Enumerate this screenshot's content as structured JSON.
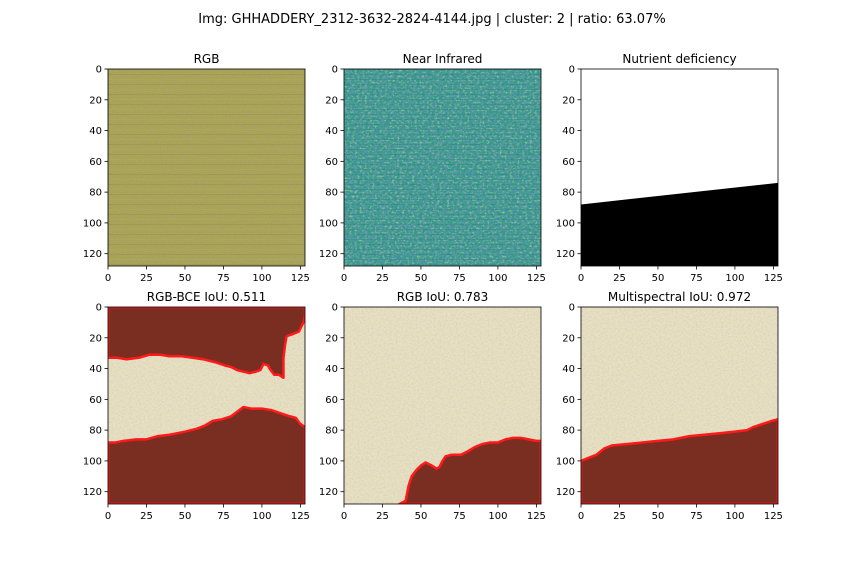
{
  "figure": {
    "title": "Img: GHHADDERY_2312-3632-2824-4144.jpg | cluster: 2 | ratio: 63.07%"
  },
  "chart_data": [
    {
      "type": "heatmap",
      "title": "RGB",
      "content": "rgb",
      "xticks": [
        0,
        25,
        50,
        75,
        100,
        125
      ],
      "yticks": [
        0,
        20,
        40,
        60,
        80,
        100,
        120
      ],
      "xlim": [
        0,
        128
      ],
      "ylim": [
        128,
        0
      ]
    },
    {
      "type": "heatmap",
      "title": "Near Infrared",
      "content": "nir",
      "colormap": "viridis",
      "xticks": [
        0,
        25,
        50,
        75,
        100,
        125
      ],
      "yticks": [
        0,
        20,
        40,
        60,
        80,
        100,
        120
      ],
      "xlim": [
        0,
        128
      ],
      "ylim": [
        128,
        0
      ]
    },
    {
      "type": "heatmap",
      "title": "Nutrient deficiency",
      "content": "mask",
      "boundary": [
        [
          0,
          88
        ],
        [
          128,
          74
        ]
      ],
      "above_color": "#ffffff",
      "below_color": "#000000",
      "xticks": [
        0,
        25,
        50,
        75,
        100,
        125
      ],
      "yticks": [
        0,
        20,
        40,
        60,
        80,
        100,
        120
      ],
      "xlim": [
        0,
        128
      ],
      "ylim": [
        128,
        0
      ]
    },
    {
      "type": "heatmap",
      "title": "RGB-BCE IoU: 0.511",
      "content": "prediction",
      "background": "#e8e0c2",
      "fill": "#7a2e22",
      "outline": "#ff1a1a",
      "regions": [
        [
          [
            0,
            0
          ],
          [
            128,
            0
          ],
          [
            128,
            5
          ],
          [
            127,
            10
          ],
          [
            124,
            16
          ],
          [
            119,
            18
          ],
          [
            116,
            19
          ],
          [
            115,
            25
          ],
          [
            114,
            33
          ],
          [
            114,
            46
          ],
          [
            111,
            44
          ],
          [
            108,
            44
          ],
          [
            105,
            40
          ],
          [
            104,
            38
          ],
          [
            101,
            37
          ],
          [
            100,
            39
          ],
          [
            99,
            41
          ],
          [
            96,
            42
          ],
          [
            92,
            43
          ],
          [
            88,
            42
          ],
          [
            84,
            41
          ],
          [
            80,
            39
          ],
          [
            76,
            38
          ],
          [
            73,
            37
          ],
          [
            70,
            36
          ],
          [
            66,
            35
          ],
          [
            62,
            34
          ],
          [
            55,
            33
          ],
          [
            48,
            32
          ],
          [
            40,
            32
          ],
          [
            34,
            31
          ],
          [
            27,
            31
          ],
          [
            20,
            33
          ],
          [
            12,
            34
          ],
          [
            6,
            33
          ],
          [
            0,
            33
          ]
        ],
        [
          [
            0,
            88
          ],
          [
            5,
            88
          ],
          [
            10,
            87
          ],
          [
            18,
            86
          ],
          [
            25,
            86
          ],
          [
            32,
            84
          ],
          [
            40,
            83
          ],
          [
            50,
            81
          ],
          [
            58,
            79
          ],
          [
            63,
            77
          ],
          [
            68,
            74
          ],
          [
            74,
            73
          ],
          [
            80,
            71
          ],
          [
            84,
            68
          ],
          [
            88,
            65
          ],
          [
            93,
            66
          ],
          [
            100,
            66
          ],
          [
            106,
            67
          ],
          [
            112,
            69
          ],
          [
            118,
            71
          ],
          [
            122,
            72
          ],
          [
            125,
            76
          ],
          [
            128,
            78
          ],
          [
            128,
            128
          ],
          [
            0,
            128
          ]
        ]
      ],
      "xticks": [
        0,
        25,
        50,
        75,
        100,
        125
      ],
      "yticks": [
        0,
        20,
        40,
        60,
        80,
        100,
        120
      ],
      "xlim": [
        0,
        128
      ],
      "ylim": [
        128,
        0
      ]
    },
    {
      "type": "heatmap",
      "title": "RGB IoU: 0.783",
      "content": "prediction",
      "background": "#e8e0c2",
      "fill": "#7a2e22",
      "outline": "#ff1a1a",
      "regions": [
        [
          [
            36,
            128
          ],
          [
            40,
            126
          ],
          [
            42,
            116
          ],
          [
            44,
            110
          ],
          [
            47,
            106
          ],
          [
            50,
            103
          ],
          [
            53,
            101
          ],
          [
            57,
            103
          ],
          [
            60,
            105
          ],
          [
            62,
            104
          ],
          [
            64,
            100
          ],
          [
            66,
            97
          ],
          [
            70,
            96
          ],
          [
            76,
            96
          ],
          [
            80,
            94
          ],
          [
            85,
            91
          ],
          [
            90,
            89
          ],
          [
            95,
            88
          ],
          [
            100,
            88
          ],
          [
            105,
            86
          ],
          [
            110,
            85
          ],
          [
            115,
            85
          ],
          [
            120,
            86
          ],
          [
            125,
            87
          ],
          [
            128,
            87
          ],
          [
            128,
            128
          ]
        ]
      ],
      "xticks": [
        0,
        25,
        50,
        75,
        100,
        125
      ],
      "yticks": [
        0,
        20,
        40,
        60,
        80,
        100,
        120
      ],
      "xlim": [
        0,
        128
      ],
      "ylim": [
        128,
        0
      ]
    },
    {
      "type": "heatmap",
      "title": "Multispectral IoU: 0.972",
      "content": "prediction",
      "background": "#e8e0c2",
      "fill": "#7a2e22",
      "outline": "#ff1a1a",
      "regions": [
        [
          [
            0,
            100
          ],
          [
            5,
            98
          ],
          [
            10,
            96
          ],
          [
            15,
            92
          ],
          [
            20,
            90
          ],
          [
            30,
            89
          ],
          [
            40,
            88
          ],
          [
            50,
            87
          ],
          [
            60,
            86
          ],
          [
            70,
            84
          ],
          [
            80,
            83
          ],
          [
            90,
            82
          ],
          [
            100,
            81
          ],
          [
            108,
            80
          ],
          [
            112,
            78
          ],
          [
            118,
            76
          ],
          [
            124,
            74
          ],
          [
            128,
            73
          ],
          [
            128,
            128
          ],
          [
            0,
            128
          ]
        ]
      ],
      "xticks": [
        0,
        25,
        50,
        75,
        100,
        125
      ],
      "yticks": [
        0,
        20,
        40,
        60,
        80,
        100,
        120
      ],
      "xlim": [
        0,
        128
      ],
      "ylim": [
        128,
        0
      ]
    }
  ]
}
